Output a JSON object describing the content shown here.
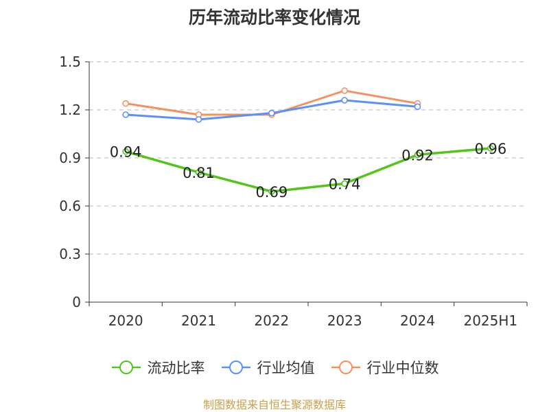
{
  "chart_data": {
    "type": "line",
    "title": "历年流动比率变化情况",
    "categories": [
      "2020",
      "2021",
      "2022",
      "2023",
      "2024",
      "2025H1"
    ],
    "ylim": [
      0,
      1.5
    ],
    "yticks": [
      0,
      0.3,
      0.6,
      0.9,
      1.2,
      1.5
    ],
    "ytick_labels": [
      "0",
      "0.3",
      "0.6",
      "0.9",
      "1.2",
      "1.5"
    ],
    "grid": true,
    "legend_position": "bottom",
    "series": [
      {
        "name": "流动比率",
        "color": "#52c41a",
        "values": [
          0.94,
          0.81,
          0.69,
          0.74,
          0.92,
          0.96
        ],
        "labels": [
          "0.94",
          "0.81",
          "0.69",
          "0.74",
          "0.92",
          "0.96"
        ]
      },
      {
        "name": "行业均值",
        "color": "#5b8ff9",
        "values": [
          1.17,
          1.14,
          1.18,
          1.26,
          1.22,
          null
        ]
      },
      {
        "name": "行业中位数",
        "color": "#f6905f",
        "values": [
          1.24,
          1.17,
          1.17,
          1.32,
          1.24,
          null
        ]
      }
    ]
  },
  "source": "制图数据来自恒生聚源数据库"
}
